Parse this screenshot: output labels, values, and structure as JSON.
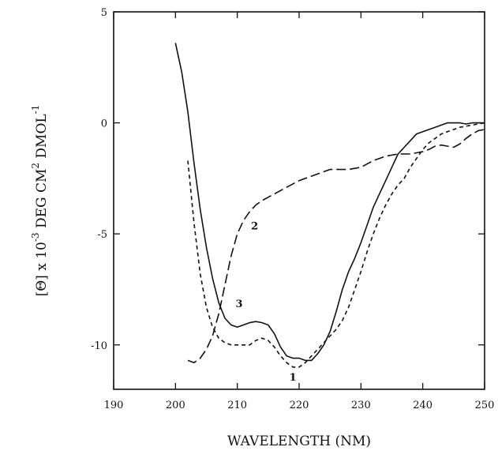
{
  "chart_data": {
    "type": "line",
    "title": "",
    "xlabel": "WAVELENGTH (NM)",
    "ylabel": "[Θ] x 10 -3 DEG CM2 DMOL-1",
    "ylabel_parts": {
      "main": "[Θ] x 10",
      "exp1": "-3",
      "mid": " DEG CM",
      "exp2": "2",
      "end": " DMOL",
      "exp3": "-1"
    },
    "xlim": [
      190,
      250
    ],
    "ylim": [
      -12,
      5
    ],
    "xticks": [
      190,
      200,
      210,
      220,
      230,
      240,
      250
    ],
    "yticks": [
      5,
      0,
      -5,
      -10
    ],
    "grid": false,
    "legend": "none",
    "series": [
      {
        "label": "1",
        "label_at": [
          219,
          -11.6
        ],
        "style": "short-dash",
        "x": [
          202,
          203,
          204,
          205,
          206,
          207,
          208,
          209,
          210,
          211,
          212,
          213,
          214,
          215,
          216,
          217,
          218,
          219,
          220,
          221,
          222,
          223,
          224,
          225,
          226,
          227,
          228,
          229,
          230,
          231,
          232,
          233,
          234,
          235,
          236,
          237,
          238,
          239,
          240,
          241,
          242,
          243,
          244,
          245,
          246,
          247,
          248,
          249,
          250
        ],
        "y": [
          -1.7,
          -4.5,
          -6.8,
          -8.3,
          -9.2,
          -9.7,
          -9.9,
          -10.0,
          -10.0,
          -10.0,
          -10.0,
          -9.8,
          -9.7,
          -9.8,
          -10.1,
          -10.5,
          -10.8,
          -11.0,
          -11.0,
          -10.8,
          -10.5,
          -10.2,
          -9.9,
          -9.6,
          -9.3,
          -8.9,
          -8.3,
          -7.5,
          -6.7,
          -5.8,
          -5.0,
          -4.3,
          -3.7,
          -3.2,
          -2.8,
          -2.5,
          -2.0,
          -1.6,
          -1.2,
          -0.9,
          -0.7,
          -0.5,
          -0.4,
          -0.3,
          -0.2,
          -0.15,
          -0.1,
          -0.05,
          0.0
        ]
      },
      {
        "label": "2",
        "label_at": [
          212.8,
          -4.8
        ],
        "style": "long-dash",
        "x": [
          202,
          203,
          204,
          205,
          206,
          207,
          208,
          209,
          210,
          211,
          212,
          213,
          214,
          215,
          216,
          217,
          218,
          219,
          220,
          221,
          222,
          223,
          224,
          225,
          226,
          227,
          228,
          229,
          230,
          231,
          232,
          233,
          234,
          235,
          236,
          237,
          238,
          239,
          240,
          241,
          242,
          243,
          244,
          245,
          246,
          247,
          248,
          249,
          250
        ],
        "y": [
          -10.7,
          -10.8,
          -10.6,
          -10.2,
          -9.6,
          -8.6,
          -7.3,
          -6.0,
          -5.0,
          -4.4,
          -4.0,
          -3.7,
          -3.5,
          -3.35,
          -3.2,
          -3.05,
          -2.9,
          -2.75,
          -2.6,
          -2.5,
          -2.4,
          -2.3,
          -2.2,
          -2.1,
          -2.1,
          -2.1,
          -2.1,
          -2.05,
          -2.0,
          -1.85,
          -1.7,
          -1.6,
          -1.5,
          -1.45,
          -1.4,
          -1.4,
          -1.4,
          -1.35,
          -1.3,
          -1.2,
          -1.05,
          -1.0,
          -1.05,
          -1.1,
          -0.95,
          -0.7,
          -0.5,
          -0.35,
          -0.3
        ]
      },
      {
        "label": "3",
        "label_at": [
          210.3,
          -8.3
        ],
        "style": "solid",
        "x": [
          200,
          201,
          202,
          203,
          204,
          205,
          206,
          207,
          208,
          209,
          210,
          211,
          212,
          213,
          214,
          215,
          216,
          217,
          218,
          219,
          220,
          221,
          222,
          223,
          224,
          225,
          226,
          227,
          228,
          229,
          230,
          231,
          232,
          233,
          234,
          235,
          236,
          237,
          238,
          239,
          240,
          241,
          242,
          243,
          244,
          245,
          246,
          247,
          248,
          249,
          250
        ],
        "y": [
          3.6,
          2.3,
          0.5,
          -1.8,
          -3.9,
          -5.6,
          -7.0,
          -8.1,
          -8.8,
          -9.1,
          -9.2,
          -9.1,
          -9.0,
          -8.95,
          -9.0,
          -9.1,
          -9.5,
          -10.1,
          -10.5,
          -10.6,
          -10.6,
          -10.7,
          -10.7,
          -10.4,
          -10.0,
          -9.4,
          -8.5,
          -7.5,
          -6.7,
          -6.1,
          -5.4,
          -4.6,
          -3.8,
          -3.2,
          -2.6,
          -2.0,
          -1.4,
          -1.1,
          -0.8,
          -0.5,
          -0.4,
          -0.3,
          -0.2,
          -0.1,
          0.0,
          0.0,
          0.0,
          -0.05,
          0.0,
          0.0,
          0.0
        ]
      }
    ]
  }
}
